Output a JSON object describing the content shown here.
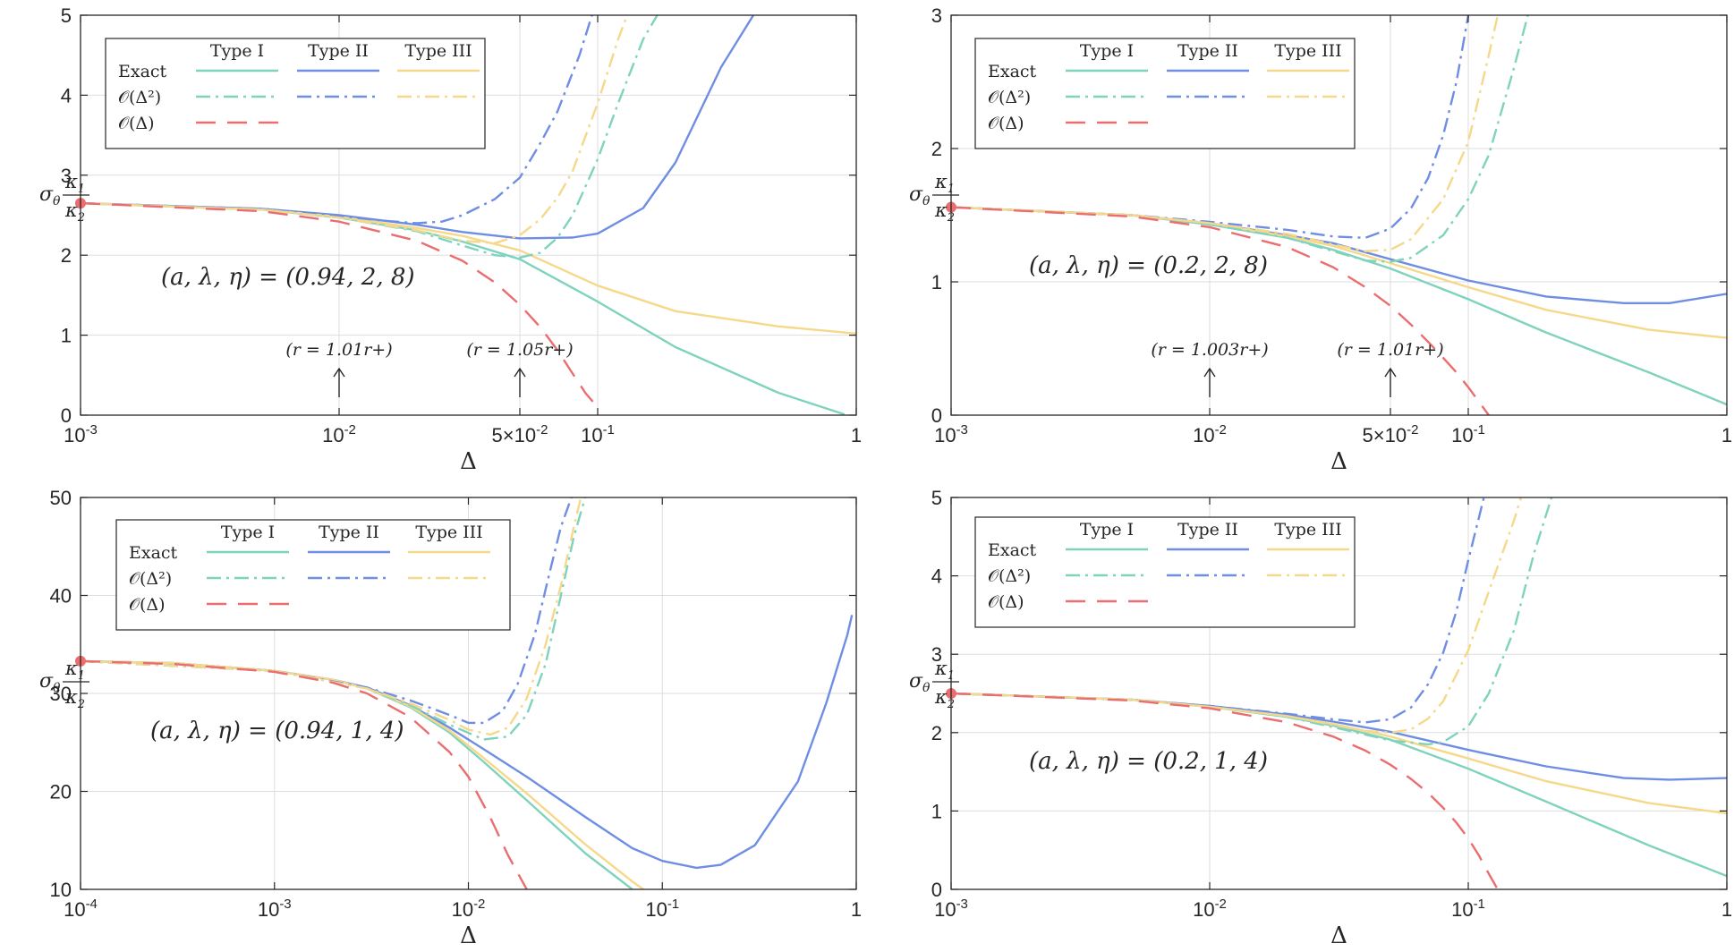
{
  "figure": {
    "colors": {
      "type1": "#7fd3bd",
      "type2": "#6f8ee3",
      "type3": "#f6d88a",
      "order1": "#ea6d6f",
      "axis": "#262626",
      "grid": "#dedede"
    },
    "legend": {
      "headers": [
        "Type I",
        "Type II",
        "Type III"
      ],
      "rows": [
        "Exact",
        "𝒪(Δ²)",
        "𝒪(Δ)"
      ]
    }
  },
  "chart_data": [
    {
      "type": "line",
      "title": "(a, λ, η) = (0.94, 2, 8)",
      "xlabel": "Δ",
      "ylabel": "σθ κ1/κ2",
      "xscale": "log",
      "xlim": [
        0.001,
        1
      ],
      "ylim": [
        0,
        5
      ],
      "x_ticks": [
        0.001,
        0.01,
        0.05,
        0.1,
        1
      ],
      "x_tick_labels": [
        "10-3",
        "10-2",
        "5×10-2",
        "10-1",
        "1"
      ],
      "y_ticks": [
        0,
        1,
        2,
        3,
        4,
        5
      ],
      "annotations": [
        {
          "text": "(r = 1.01r+)",
          "x": 0.01
        },
        {
          "text": "(r = 1.05r+)",
          "x": 0.05
        }
      ],
      "start_point": {
        "x": 0.001,
        "y": 2.65
      },
      "series": [
        {
          "name": "Type I Exact",
          "x": [
            0.001,
            0.005,
            0.01,
            0.02,
            0.03,
            0.05,
            0.1,
            0.2,
            0.5,
            0.9
          ],
          "y": [
            2.65,
            2.57,
            2.47,
            2.31,
            2.17,
            1.95,
            1.42,
            0.85,
            0.28,
            0.01
          ]
        },
        {
          "name": "Type II Exact",
          "x": [
            0.001,
            0.005,
            0.01,
            0.02,
            0.03,
            0.05,
            0.08,
            0.1,
            0.15,
            0.2,
            0.3,
            0.4
          ],
          "y": [
            2.65,
            2.58,
            2.5,
            2.38,
            2.29,
            2.21,
            2.22,
            2.27,
            2.59,
            3.16,
            4.35,
            5.0
          ]
        },
        {
          "name": "Type III Exact",
          "x": [
            0.001,
            0.005,
            0.01,
            0.02,
            0.03,
            0.05,
            0.1,
            0.2,
            0.5,
            1
          ],
          "y": [
            2.65,
            2.57,
            2.48,
            2.34,
            2.24,
            2.06,
            1.62,
            1.3,
            1.11,
            1.02
          ]
        },
        {
          "name": "Type I O(Δ²)",
          "x": [
            0.001,
            0.005,
            0.01,
            0.02,
            0.03,
            0.04,
            0.05,
            0.06,
            0.07,
            0.08,
            0.1,
            0.12,
            0.15,
            0.17
          ],
          "y": [
            2.65,
            2.57,
            2.47,
            2.3,
            2.12,
            2.0,
            1.97,
            2.03,
            2.22,
            2.5,
            3.2,
            3.9,
            4.7,
            5.0
          ]
        },
        {
          "name": "Type II O(Δ²)",
          "x": [
            0.001,
            0.005,
            0.01,
            0.015,
            0.02,
            0.025,
            0.03,
            0.04,
            0.05,
            0.06,
            0.07,
            0.085,
            0.095
          ],
          "y": [
            2.65,
            2.58,
            2.49,
            2.43,
            2.4,
            2.42,
            2.5,
            2.7,
            2.97,
            3.4,
            3.8,
            4.5,
            5.0
          ]
        },
        {
          "name": "Type III O(Δ²)",
          "x": [
            0.001,
            0.005,
            0.01,
            0.02,
            0.03,
            0.04,
            0.05,
            0.06,
            0.07,
            0.08,
            0.1,
            0.12,
            0.13
          ],
          "y": [
            2.65,
            2.57,
            2.47,
            2.31,
            2.18,
            2.15,
            2.25,
            2.45,
            2.72,
            3.05,
            3.9,
            4.7,
            5.0
          ]
        },
        {
          "name": "O(Δ)",
          "x": [
            0.001,
            0.005,
            0.01,
            0.02,
            0.03,
            0.04,
            0.05,
            0.06,
            0.07,
            0.08,
            0.09,
            0.1
          ],
          "y": [
            2.65,
            2.55,
            2.42,
            2.18,
            1.93,
            1.66,
            1.38,
            1.1,
            0.81,
            0.52,
            0.27,
            0.1
          ]
        }
      ]
    },
    {
      "type": "line",
      "title": "(a, λ, η) = (0.2, 2, 8)",
      "xlabel": "Δ",
      "ylabel": "σθ κ1/κ2",
      "xscale": "log",
      "xlim": [
        0.001,
        1
      ],
      "ylim": [
        0,
        3
      ],
      "x_ticks": [
        0.001,
        0.01,
        0.05,
        0.1,
        1
      ],
      "x_tick_labels": [
        "10-3",
        "10-2",
        "5×10-2",
        "10-1",
        "1"
      ],
      "y_ticks": [
        0,
        1,
        2,
        3
      ],
      "annotations": [
        {
          "text": "(r = 1.003r+)",
          "x": 0.01
        },
        {
          "text": "(r = 1.01r+)",
          "x": 0.05
        }
      ],
      "start_point": {
        "x": 0.001,
        "y": 1.56
      },
      "series": [
        {
          "name": "Type I Exact",
          "x": [
            0.001,
            0.005,
            0.01,
            0.02,
            0.03,
            0.05,
            0.1,
            0.2,
            0.5,
            1
          ],
          "y": [
            1.56,
            1.5,
            1.43,
            1.33,
            1.24,
            1.1,
            0.87,
            0.62,
            0.32,
            0.08
          ]
        },
        {
          "name": "Type II Exact",
          "x": [
            0.001,
            0.005,
            0.01,
            0.02,
            0.03,
            0.05,
            0.1,
            0.2,
            0.4,
            0.6,
            1
          ],
          "y": [
            1.56,
            1.5,
            1.44,
            1.35,
            1.29,
            1.17,
            1.01,
            0.89,
            0.84,
            0.84,
            0.91
          ]
        },
        {
          "name": "Type III Exact",
          "x": [
            0.001,
            0.005,
            0.01,
            0.02,
            0.03,
            0.05,
            0.1,
            0.2,
            0.5,
            1
          ],
          "y": [
            1.56,
            1.5,
            1.44,
            1.34,
            1.27,
            1.14,
            0.96,
            0.79,
            0.64,
            0.58
          ]
        },
        {
          "name": "Type I O(Δ²)",
          "x": [
            0.001,
            0.005,
            0.01,
            0.02,
            0.03,
            0.04,
            0.05,
            0.06,
            0.08,
            0.1,
            0.12,
            0.15,
            0.17
          ],
          "y": [
            1.56,
            1.5,
            1.43,
            1.33,
            1.23,
            1.16,
            1.15,
            1.18,
            1.35,
            1.62,
            1.95,
            2.6,
            3.0
          ]
        },
        {
          "name": "Type II O(Δ²)",
          "x": [
            0.001,
            0.005,
            0.01,
            0.02,
            0.03,
            0.04,
            0.05,
            0.06,
            0.07,
            0.08,
            0.09,
            0.1
          ],
          "y": [
            1.56,
            1.5,
            1.45,
            1.39,
            1.34,
            1.33,
            1.4,
            1.55,
            1.78,
            2.1,
            2.5,
            3.0
          ]
        },
        {
          "name": "Type III O(Δ²)",
          "x": [
            0.001,
            0.005,
            0.01,
            0.02,
            0.03,
            0.04,
            0.05,
            0.06,
            0.08,
            0.1,
            0.12,
            0.13
          ],
          "y": [
            1.56,
            1.5,
            1.44,
            1.36,
            1.28,
            1.23,
            1.24,
            1.32,
            1.62,
            2.05,
            2.7,
            3.0
          ]
        },
        {
          "name": "O(Δ)",
          "x": [
            0.001,
            0.005,
            0.01,
            0.02,
            0.03,
            0.04,
            0.05,
            0.06,
            0.07,
            0.08,
            0.09,
            0.1,
            0.11,
            0.12
          ],
          "y": [
            1.56,
            1.49,
            1.41,
            1.26,
            1.11,
            0.96,
            0.82,
            0.68,
            0.55,
            0.43,
            0.32,
            0.21,
            0.1,
            0.0
          ]
        }
      ]
    },
    {
      "type": "line",
      "title": "(a, λ, η) = (0.94, 1, 4)",
      "xlabel": "Δ",
      "ylabel": "σθ κ1/κ2",
      "xscale": "log",
      "xlim": [
        0.0001,
        1
      ],
      "ylim": [
        10,
        50
      ],
      "x_ticks": [
        0.0001,
        0.001,
        0.01,
        0.1,
        1
      ],
      "x_tick_labels": [
        "10-4",
        "10-3",
        "10-2",
        "10-1",
        "1"
      ],
      "y_ticks": [
        10,
        20,
        30,
        40,
        50
      ],
      "annotations": [],
      "start_point": {
        "x": 0.0001,
        "y": 33.3
      },
      "series": [
        {
          "name": "Type I Exact",
          "x": [
            0.0001,
            0.0003,
            0.001,
            0.002,
            0.003,
            0.005,
            0.008,
            0.012,
            0.02,
            0.04,
            0.07
          ],
          "y": [
            33.3,
            33.1,
            32.3,
            31.4,
            30.5,
            28.6,
            26.0,
            23.0,
            19.1,
            13.7,
            10.0
          ]
        },
        {
          "name": "Type II Exact",
          "x": [
            0.0001,
            0.0003,
            0.001,
            0.002,
            0.003,
            0.005,
            0.008,
            0.012,
            0.02,
            0.04,
            0.07,
            0.1,
            0.15,
            0.2,
            0.3,
            0.5,
            0.7,
            0.9,
            0.95
          ],
          "y": [
            33.3,
            33.1,
            32.3,
            31.4,
            30.6,
            28.8,
            26.5,
            24.3,
            21.5,
            17.4,
            14.2,
            12.9,
            12.2,
            12.5,
            14.5,
            21.0,
            29.0,
            36.0,
            38.0
          ]
        },
        {
          "name": "Type III Exact",
          "x": [
            0.0001,
            0.0003,
            0.001,
            0.002,
            0.003,
            0.005,
            0.008,
            0.012,
            0.02,
            0.04,
            0.07,
            0.08
          ],
          "y": [
            33.3,
            33.1,
            32.3,
            31.4,
            30.5,
            28.7,
            26.2,
            23.4,
            19.8,
            14.6,
            10.8,
            10.0
          ]
        },
        {
          "name": "Type I O(Δ²)",
          "x": [
            0.0001,
            0.001,
            0.003,
            0.005,
            0.008,
            0.012,
            0.016,
            0.02,
            0.025,
            0.03,
            0.035,
            0.04
          ],
          "y": [
            33.3,
            32.3,
            30.5,
            28.8,
            26.8,
            25.3,
            25.6,
            27.8,
            33.0,
            40.0,
            46.0,
            50.0
          ]
        },
        {
          "name": "Type II O(Δ²)",
          "x": [
            0.0001,
            0.001,
            0.003,
            0.005,
            0.008,
            0.01,
            0.012,
            0.015,
            0.018,
            0.022,
            0.026,
            0.03,
            0.034
          ],
          "y": [
            33.3,
            32.3,
            30.6,
            29.3,
            27.8,
            27.0,
            27.0,
            28.2,
            31.0,
            36.0,
            42.0,
            47.0,
            50.0
          ]
        },
        {
          "name": "Type III O(Δ²)",
          "x": [
            0.0001,
            0.001,
            0.003,
            0.005,
            0.008,
            0.01,
            0.013,
            0.016,
            0.02,
            0.025,
            0.03,
            0.035,
            0.038
          ],
          "y": [
            33.3,
            32.3,
            30.5,
            29.0,
            27.3,
            26.3,
            25.8,
            26.5,
            29.5,
            35.0,
            41.0,
            47.0,
            50.0
          ]
        },
        {
          "name": "O(Δ)",
          "x": [
            0.0001,
            0.0003,
            0.001,
            0.002,
            0.003,
            0.005,
            0.008,
            0.01,
            0.013,
            0.016,
            0.02
          ],
          "y": [
            33.3,
            33.0,
            32.2,
            31.1,
            30.0,
            27.6,
            24.0,
            21.5,
            17.3,
            13.5,
            10.0
          ]
        }
      ]
    },
    {
      "type": "line",
      "title": "(a, λ, η) = (0.2, 1, 4)",
      "xlabel": "Δ",
      "ylabel": "σθ κ1/κ2",
      "xscale": "log",
      "xlim": [
        0.001,
        1
      ],
      "ylim": [
        0,
        5
      ],
      "x_ticks": [
        0.001,
        0.01,
        0.1,
        1
      ],
      "x_tick_labels": [
        "10-3",
        "10-2",
        "10-1",
        "1"
      ],
      "y_ticks": [
        0,
        1,
        2,
        3,
        4,
        5
      ],
      "annotations": [],
      "start_point": {
        "x": 0.001,
        "y": 2.5
      },
      "series": [
        {
          "name": "Type I Exact",
          "x": [
            0.001,
            0.005,
            0.01,
            0.02,
            0.03,
            0.05,
            0.1,
            0.2,
            0.5,
            1
          ],
          "y": [
            2.5,
            2.42,
            2.33,
            2.2,
            2.09,
            1.91,
            1.54,
            1.12,
            0.56,
            0.17
          ]
        },
        {
          "name": "Type II Exact",
          "x": [
            0.001,
            0.005,
            0.01,
            0.02,
            0.03,
            0.05,
            0.1,
            0.2,
            0.4,
            0.6,
            1
          ],
          "y": [
            2.5,
            2.42,
            2.34,
            2.23,
            2.14,
            2.01,
            1.78,
            1.57,
            1.42,
            1.4,
            1.42
          ]
        },
        {
          "name": "Type III Exact",
          "x": [
            0.001,
            0.005,
            0.01,
            0.02,
            0.03,
            0.05,
            0.1,
            0.2,
            0.5,
            1
          ],
          "y": [
            2.5,
            2.42,
            2.33,
            2.21,
            2.11,
            1.95,
            1.67,
            1.38,
            1.1,
            0.97
          ]
        },
        {
          "name": "Type I O(Δ²)",
          "x": [
            0.001,
            0.005,
            0.01,
            0.02,
            0.03,
            0.05,
            0.07,
            0.08,
            0.1,
            0.12,
            0.15,
            0.18,
            0.21
          ],
          "y": [
            2.5,
            2.42,
            2.33,
            2.2,
            2.07,
            1.9,
            1.85,
            1.88,
            2.08,
            2.5,
            3.3,
            4.3,
            5.0
          ]
        },
        {
          "name": "Type II O(Δ²)",
          "x": [
            0.001,
            0.005,
            0.01,
            0.02,
            0.03,
            0.04,
            0.05,
            0.06,
            0.07,
            0.08,
            0.09,
            0.1,
            0.115
          ],
          "y": [
            2.5,
            2.42,
            2.34,
            2.24,
            2.17,
            2.13,
            2.17,
            2.32,
            2.62,
            3.02,
            3.55,
            4.2,
            5.0
          ]
        },
        {
          "name": "Type III O(Δ²)",
          "x": [
            0.001,
            0.005,
            0.01,
            0.02,
            0.03,
            0.04,
            0.05,
            0.06,
            0.07,
            0.08,
            0.1,
            0.12,
            0.15,
            0.16
          ],
          "y": [
            2.5,
            2.42,
            2.33,
            2.21,
            2.1,
            2.02,
            2.0,
            2.04,
            2.18,
            2.4,
            3.05,
            3.8,
            4.7,
            5.0
          ]
        },
        {
          "name": "O(Δ)",
          "x": [
            0.001,
            0.005,
            0.01,
            0.02,
            0.03,
            0.04,
            0.05,
            0.06,
            0.07,
            0.08,
            0.09,
            0.1,
            0.11,
            0.12,
            0.13
          ],
          "y": [
            2.5,
            2.41,
            2.31,
            2.13,
            1.95,
            1.77,
            1.59,
            1.41,
            1.23,
            1.04,
            0.85,
            0.65,
            0.43,
            0.2,
            0.0
          ]
        }
      ]
    }
  ]
}
